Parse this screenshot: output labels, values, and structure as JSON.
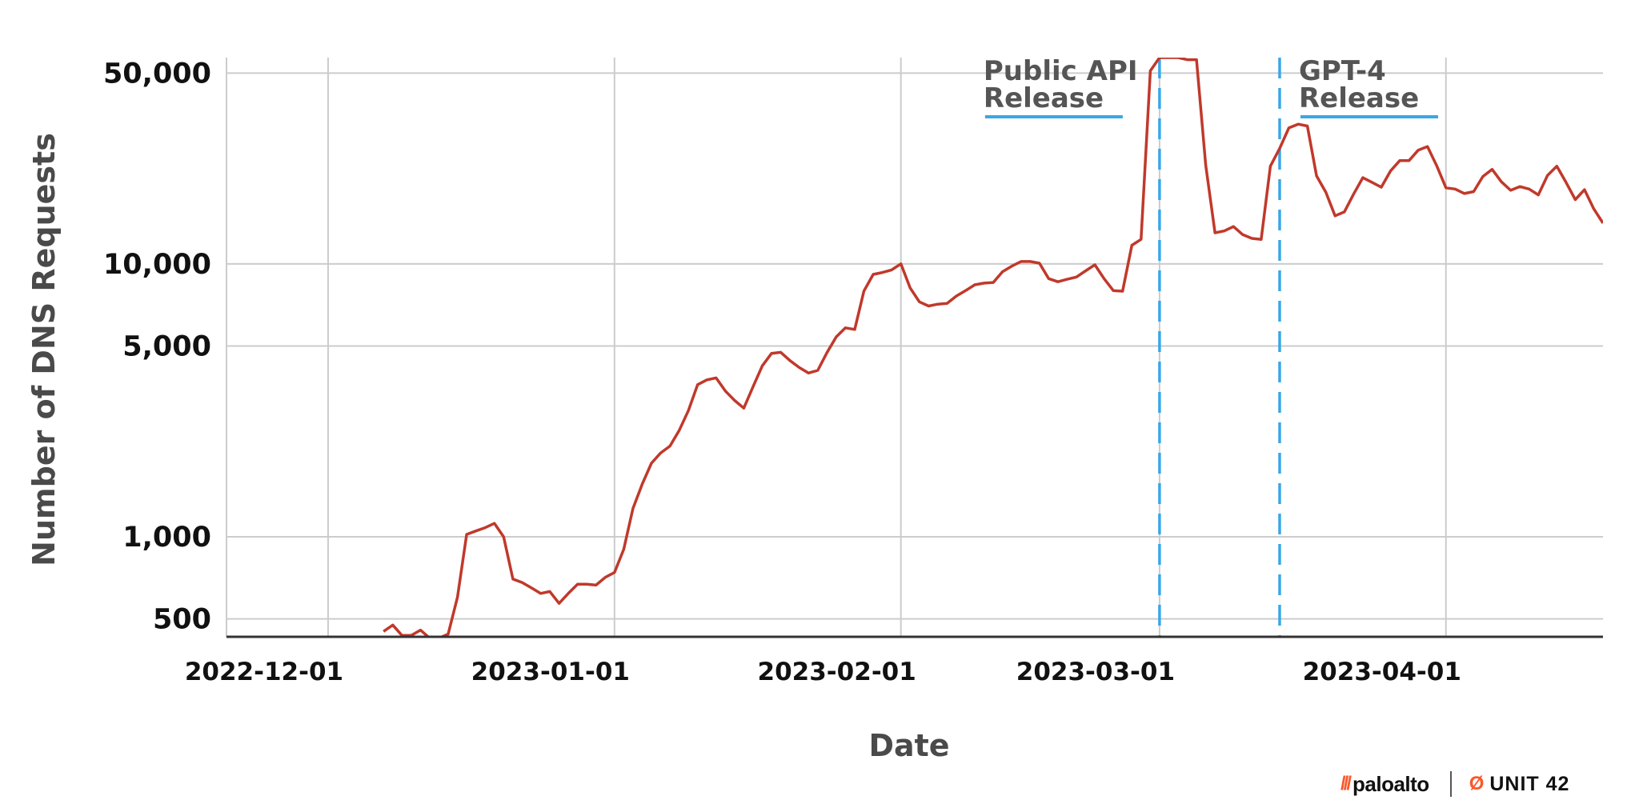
{
  "chart_data": {
    "type": "line",
    "ylabel": "Number of DNS Requests",
    "xlabel": "Date",
    "yscale": "log",
    "ylim": [
      430,
      57000
    ],
    "xlim": [
      "2022-11-20",
      "2023-04-18"
    ],
    "grid": true,
    "x_ticks": [
      "2022-12-01",
      "2023-01-01",
      "2023-02-01",
      "2023-03-01",
      "2023-04-01"
    ],
    "y_ticks": [
      {
        "value": 500,
        "label": "500"
      },
      {
        "value": 1000,
        "label": "1,000"
      },
      {
        "value": 5000,
        "label": "5,000"
      },
      {
        "value": 10000,
        "label": "10,000"
      },
      {
        "value": 50000,
        "label": "50,000"
      }
    ],
    "annotations": [
      {
        "date": "2023-03-01",
        "line1": "Public API",
        "line2": "Release"
      },
      {
        "date": "2023-03-14",
        "line1": "GPT-4",
        "line2": "Release"
      }
    ],
    "line_color": "#c0392b",
    "annotation_color": "#3aa7e8",
    "series": [
      {
        "x": [
          "2022-12-07",
          "2022-12-08",
          "2022-12-09",
          "2022-12-10",
          "2022-12-11",
          "2022-12-12",
          "2022-12-13",
          "2022-12-14",
          "2022-12-15",
          "2022-12-16",
          "2022-12-17",
          "2022-12-18",
          "2022-12-19",
          "2022-12-20",
          "2022-12-21",
          "2022-12-22",
          "2022-12-23",
          "2022-12-24",
          "2022-12-25",
          "2022-12-26",
          "2022-12-27",
          "2022-12-28",
          "2022-12-29",
          "2022-12-30",
          "2022-12-31",
          "2023-01-01",
          "2023-01-02",
          "2023-01-03",
          "2023-01-04",
          "2023-01-05",
          "2023-01-06",
          "2023-01-07",
          "2023-01-08",
          "2023-01-09",
          "2023-01-10",
          "2023-01-11",
          "2023-01-12",
          "2023-01-13",
          "2023-01-14",
          "2023-01-15",
          "2023-01-16",
          "2023-01-17",
          "2023-01-18",
          "2023-01-19",
          "2023-01-20",
          "2023-01-21",
          "2023-01-22",
          "2023-01-23",
          "2023-01-24",
          "2023-01-25",
          "2023-01-26",
          "2023-01-27",
          "2023-01-28",
          "2023-01-29",
          "2023-01-30",
          "2023-01-31",
          "2023-02-01",
          "2023-02-02",
          "2023-02-03",
          "2023-02-04",
          "2023-02-05",
          "2023-02-06",
          "2023-02-07",
          "2023-02-08",
          "2023-02-09",
          "2023-02-10",
          "2023-02-11",
          "2023-02-12",
          "2023-02-13",
          "2023-02-14",
          "2023-02-15",
          "2023-02-16",
          "2023-02-17",
          "2023-02-18",
          "2023-02-19",
          "2023-02-20",
          "2023-02-21",
          "2023-02-22",
          "2023-02-23",
          "2023-02-24",
          "2023-02-25",
          "2023-02-26",
          "2023-02-27",
          "2023-02-28",
          "2023-03-01",
          "2023-03-02",
          "2023-03-03",
          "2023-03-04",
          "2023-03-05",
          "2023-03-06",
          "2023-03-07",
          "2023-03-08",
          "2023-03-09",
          "2023-03-10",
          "2023-03-11",
          "2023-03-12",
          "2023-03-13",
          "2023-03-14",
          "2023-03-15",
          "2023-03-16",
          "2023-03-17",
          "2023-03-18",
          "2023-03-19",
          "2023-03-20",
          "2023-03-21",
          "2023-03-22",
          "2023-03-23",
          "2023-03-24",
          "2023-03-25",
          "2023-03-26",
          "2023-03-27",
          "2023-03-28",
          "2023-03-29",
          "2023-03-30",
          "2023-03-31",
          "2023-04-01",
          "2023-04-02",
          "2023-04-03",
          "2023-04-04",
          "2023-04-05",
          "2023-04-06",
          "2023-04-07",
          "2023-04-08",
          "2023-04-09",
          "2023-04-10",
          "2023-04-11",
          "2023-04-12",
          "2023-04-13",
          "2023-04-14",
          "2023-04-15",
          "2023-04-16",
          "2023-04-17",
          "2023-04-18"
        ],
        "values": [
          450,
          475,
          435,
          435,
          455,
          425,
          425,
          440,
          600,
          1020,
          1050,
          1080,
          1120,
          1000,
          700,
          680,
          650,
          620,
          630,
          570,
          620,
          670,
          670,
          665,
          710,
          740,
          900,
          1270,
          1560,
          1860,
          2030,
          2150,
          2450,
          2900,
          3610,
          3760,
          3820,
          3420,
          3160,
          2960,
          3550,
          4230,
          4700,
          4740,
          4420,
          4170,
          3980,
          4070,
          4730,
          5400,
          5830,
          5750,
          7950,
          9150,
          9300,
          9500,
          10000,
          8170,
          7260,
          7010,
          7120,
          7160,
          7620,
          7980,
          8380,
          8500,
          8550,
          9360,
          9810,
          10200,
          10200,
          10060,
          8830,
          8600,
          8780,
          8950,
          9430,
          9920,
          8830,
          7980,
          7940,
          11700,
          12300,
          51000,
          57000,
          57000,
          57000,
          56000,
          56000,
          23000,
          13000,
          13200,
          13700,
          12800,
          12400,
          12300,
          22800,
          26500,
          31500,
          32500,
          32000,
          21000,
          18300,
          15000,
          15500,
          18000,
          20700,
          19900,
          19100,
          21900,
          23900,
          23900,
          26100,
          26900,
          22900,
          19000,
          18800,
          18100,
          18400,
          20900,
          22200,
          20000,
          18600,
          19200,
          18800,
          17900,
          21100,
          22800,
          19900,
          17200,
          18700,
          15900,
          14100
        ]
      }
    ]
  },
  "logos": {
    "paloalto_mark": "///",
    "paloalto_text": "paloalto",
    "unit42_mark": "Ø",
    "unit42_text": "UNIT 42"
  }
}
